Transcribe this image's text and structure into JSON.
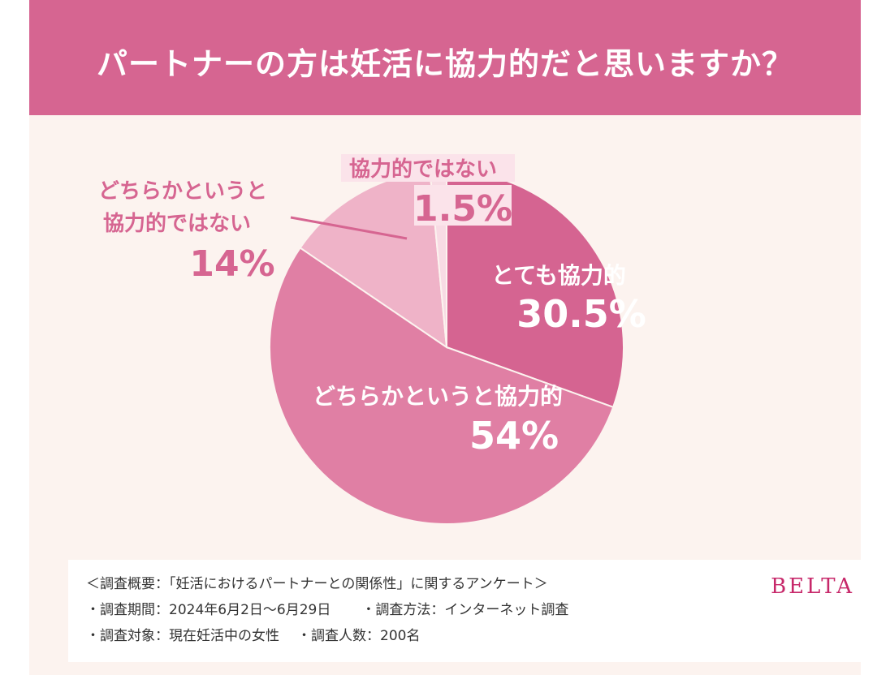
{
  "title": "パートナーの方は妊活に協力的だと思いますか？",
  "chart_data": {
    "type": "pie",
    "title": "パートナーの方は妊活に協力的だと思いますか？",
    "unit": "%",
    "slices": [
      {
        "label": "とても協力的",
        "value": 30.5,
        "value_label": "30.5%",
        "color": "#d56491"
      },
      {
        "label": "どちらかというと協力的",
        "value": 54,
        "value_label": "54%",
        "color": "#e07fa4"
      },
      {
        "label_lines": [
          "どちらかというと",
          "協力的ではない"
        ],
        "label": "どちらかというと協力的ではない",
        "value": 14,
        "value_label": "14%",
        "color": "#efb3c8"
      },
      {
        "label": "協力的ではない",
        "value": 1.5,
        "value_label": "1.5%",
        "color": "#f8dbe4"
      }
    ]
  },
  "survey": {
    "line1": "＜調査概要：「妊活におけるパートナーとの関係性」に関するアンケート＞",
    "period": "・調査期間：2024年6月2日〜6月29日",
    "method": "・調査方法：インターネット調査",
    "target": "・調査対象：現在妊活中の女性",
    "count": "・調査人数：200名"
  },
  "brand": "BELTA",
  "colors": {
    "header_bg": "#d66591",
    "page_bg": "#fcf3ef",
    "label_pink": "#d66591",
    "brand": "#c7286a"
  }
}
